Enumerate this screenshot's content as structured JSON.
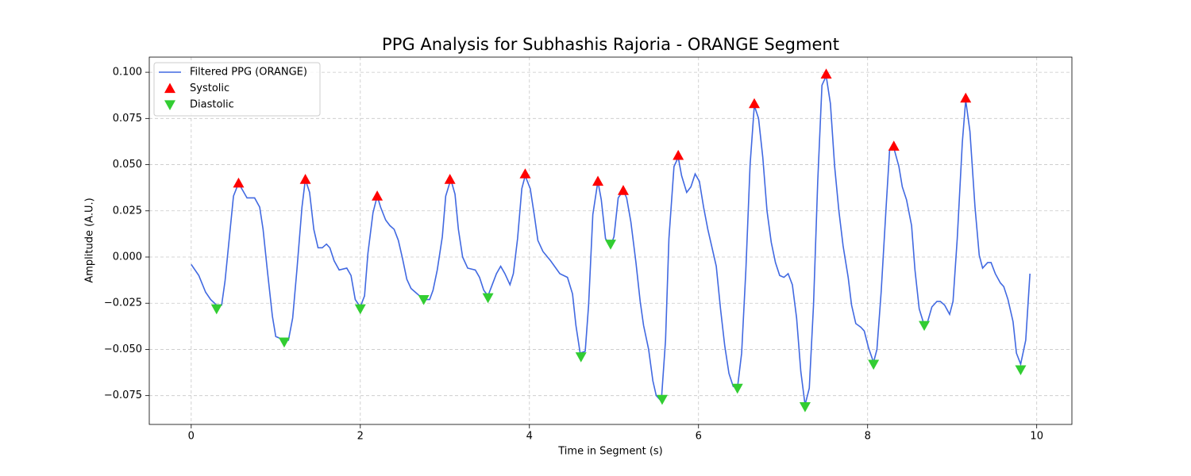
{
  "chart_data": {
    "type": "line",
    "title": "PPG Analysis for Subhashis Rajoria - ORANGE Segment",
    "x_label": "Time in Segment (s)",
    "y_label": "Amplitude (A.U.)",
    "xlim": [
      -0.496,
      10.416
    ],
    "ylim": [
      -0.0906,
      0.1082
    ],
    "xticks": [
      0,
      2,
      4,
      6,
      8,
      10
    ],
    "yticks": [
      {
        "value": -0.075,
        "label": "−0.075"
      },
      {
        "value": -0.05,
        "label": "−0.050"
      },
      {
        "value": -0.025,
        "label": "−0.025"
      },
      {
        "value": 0,
        "label": "0.000"
      },
      {
        "value": 0.025,
        "label": "0.025"
      },
      {
        "value": 0.05,
        "label": "0.050"
      },
      {
        "value": 0.075,
        "label": "0.075"
      },
      {
        "value": 0.1,
        "label": "0.100"
      }
    ],
    "grid": true,
    "legend": "upper-left",
    "series": [
      {
        "name": "Filtered PPG (ORANGE)",
        "type": "line",
        "color": "#4169e1",
        "x": [
          0,
          0.09,
          0.17,
          0.23,
          0.3,
          0.36,
          0.4,
          0.45,
          0.5,
          0.56,
          0.61,
          0.66,
          0.75,
          0.81,
          0.85,
          0.9,
          0.96,
          1.0,
          1.1,
          1.15,
          1.2,
          1.25,
          1.31,
          1.35,
          1.4,
          1.45,
          1.5,
          1.55,
          1.6,
          1.64,
          1.69,
          1.75,
          1.84,
          1.89,
          1.94,
          2.0,
          2.05,
          2.09,
          2.15,
          2.2,
          2.24,
          2.3,
          2.35,
          2.4,
          2.45,
          2.5,
          2.55,
          2.6,
          2.65,
          2.7,
          2.77,
          2.82,
          2.86,
          2.91,
          2.97,
          3.01,
          3.07,
          3.12,
          3.16,
          3.21,
          3.27,
          3.36,
          3.41,
          3.46,
          3.51,
          3.56,
          3.61,
          3.66,
          3.71,
          3.77,
          3.81,
          3.86,
          3.91,
          3.95,
          4.01,
          4.06,
          4.1,
          4.16,
          4.25,
          4.36,
          4.45,
          4.51,
          4.55,
          4.6,
          4.66,
          4.7,
          4.75,
          4.81,
          4.85,
          4.9,
          4.96,
          5.0,
          5.05,
          5.11,
          5.15,
          5.2,
          5.26,
          5.31,
          5.35,
          5.41,
          5.46,
          5.5,
          5.56,
          5.61,
          5.65,
          5.71,
          5.76,
          5.8,
          5.86,
          5.91,
          5.96,
          6.01,
          6.06,
          6.11,
          6.16,
          6.21,
          6.26,
          6.31,
          6.36,
          6.41,
          6.46,
          6.51,
          6.56,
          6.61,
          6.66,
          6.71,
          6.76,
          6.81,
          6.86,
          6.91,
          6.96,
          7.01,
          7.06,
          7.11,
          7.16,
          7.21,
          7.26,
          7.31,
          7.36,
          7.41,
          7.46,
          7.51,
          7.56,
          7.61,
          7.66,
          7.71,
          7.77,
          7.81,
          7.86,
          7.92,
          7.96,
          8.01,
          8.07,
          8.11,
          8.16,
          8.22,
          8.26,
          8.31,
          8.37,
          8.41,
          8.46,
          8.52,
          8.56,
          8.61,
          8.67,
          8.71,
          8.76,
          8.82,
          8.86,
          8.91,
          8.97,
          9.01,
          9.06,
          9.12,
          9.16,
          9.21,
          9.27,
          9.32,
          9.36,
          9.42,
          9.46,
          9.51,
          9.57,
          9.61,
          9.66,
          9.72,
          9.76,
          9.81,
          9.87,
          9.92
        ],
        "values": [
          -0.004,
          -0.01,
          -0.019,
          -0.023,
          -0.026,
          -0.026,
          -0.013,
          0.01,
          0.033,
          0.04,
          0.036,
          0.032,
          0.032,
          0.027,
          0.015,
          -0.007,
          -0.032,
          -0.043,
          -0.045,
          -0.045,
          -0.033,
          -0.007,
          0.027,
          0.042,
          0.035,
          0.015,
          0.005,
          0.005,
          0.007,
          0.005,
          -0.002,
          -0.007,
          -0.006,
          -0.01,
          -0.023,
          -0.027,
          -0.021,
          0.002,
          0.024,
          0.033,
          0.027,
          0.02,
          0.017,
          0.015,
          0.009,
          -0.001,
          -0.012,
          -0.017,
          -0.019,
          -0.021,
          -0.023,
          -0.023,
          -0.018,
          -0.007,
          0.011,
          0.033,
          0.042,
          0.034,
          0.015,
          0.0,
          -0.006,
          -0.007,
          -0.011,
          -0.018,
          -0.021,
          -0.015,
          -0.009,
          -0.005,
          -0.009,
          -0.015,
          -0.009,
          0.01,
          0.037,
          0.044,
          0.037,
          0.022,
          0.009,
          0.003,
          -0.002,
          -0.009,
          -0.011,
          -0.02,
          -0.037,
          -0.052,
          -0.051,
          -0.026,
          0.023,
          0.041,
          0.031,
          0.01,
          0.006,
          0.011,
          0.032,
          0.036,
          0.032,
          0.019,
          -0.003,
          -0.024,
          -0.037,
          -0.05,
          -0.067,
          -0.075,
          -0.078,
          -0.045,
          0.01,
          0.049,
          0.054,
          0.044,
          0.035,
          0.038,
          0.045,
          0.041,
          0.027,
          0.015,
          0.005,
          -0.005,
          -0.028,
          -0.048,
          -0.063,
          -0.07,
          -0.071,
          -0.052,
          -0.007,
          0.05,
          0.082,
          0.075,
          0.054,
          0.025,
          0.008,
          -0.003,
          -0.01,
          -0.011,
          -0.009,
          -0.015,
          -0.033,
          -0.062,
          -0.08,
          -0.071,
          -0.026,
          0.041,
          0.093,
          0.098,
          0.083,
          0.049,
          0.025,
          0.006,
          -0.011,
          -0.026,
          -0.036,
          -0.038,
          -0.04,
          -0.049,
          -0.057,
          -0.05,
          -0.019,
          0.028,
          0.058,
          0.059,
          0.049,
          0.038,
          0.031,
          0.017,
          -0.007,
          -0.028,
          -0.037,
          -0.035,
          -0.027,
          -0.024,
          -0.024,
          -0.026,
          -0.031,
          -0.024,
          0.01,
          0.062,
          0.085,
          0.068,
          0.027,
          0.001,
          -0.006,
          -0.003,
          -0.003,
          -0.009,
          -0.014,
          -0.016,
          -0.023,
          -0.035,
          -0.052,
          -0.058,
          -0.045,
          -0.009
        ]
      },
      {
        "name": "Systolic",
        "type": "scatter",
        "marker": "up",
        "color": "#ff0000",
        "x": [
          0.56,
          1.35,
          2.2,
          3.06,
          3.95,
          4.81,
          5.11,
          5.76,
          6.66,
          7.51,
          8.31,
          9.16
        ],
        "values": [
          0.04,
          0.042,
          0.033,
          0.042,
          0.045,
          0.041,
          0.036,
          0.055,
          0.083,
          0.099,
          0.06,
          0.086
        ]
      },
      {
        "name": "Diastolic",
        "type": "scatter",
        "marker": "down",
        "color": "#32cd32",
        "x": [
          0.3,
          1.1,
          2.0,
          2.75,
          3.51,
          4.61,
          4.96,
          5.57,
          6.46,
          7.26,
          8.07,
          8.67,
          9.81
        ],
        "values": [
          -0.028,
          -0.046,
          -0.028,
          -0.023,
          -0.022,
          -0.054,
          0.007,
          -0.077,
          -0.071,
          -0.081,
          -0.058,
          -0.037,
          -0.061
        ]
      }
    ]
  }
}
